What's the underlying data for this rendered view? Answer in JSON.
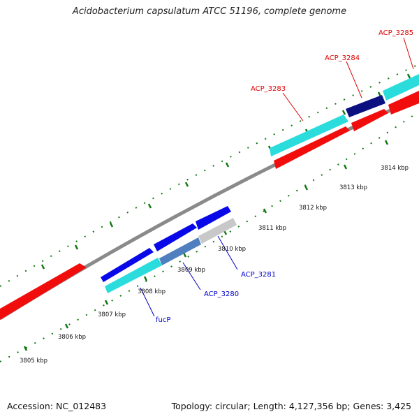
{
  "title": "Acidobacterium capsulatum ATCC 51196, complete genome",
  "footer": {
    "accession": "Accession: NC_012483",
    "summary": "Topology: circular; Length: 4,127,356 bp; Genes: 3,425"
  },
  "ticks": [
    "3805 kbp",
    "3806 kbp",
    "3807 kbp",
    "3808 kbp",
    "3809 kbp",
    "3810 kbp",
    "3811 kbp",
    "3812 kbp",
    "3813 kbp",
    "3814 kbp"
  ],
  "labels": {
    "acp3285": "ACP_3285",
    "acp3284": "ACP_3284",
    "acp3283": "ACP_3283",
    "acp3281": "ACP_3281",
    "acp3280": "ACP_3280",
    "fucp": "fucP"
  },
  "colors": {
    "forward_strand": "#f20d0d",
    "reverse_strand": "#2adcdc",
    "blue_gene": "#0808e8",
    "navy_gene": "#0a1080",
    "grey_gene": "#c8c8c8",
    "steel_gene": "#4f7fbf",
    "red_label": "#dd0000",
    "blue_label": "#0000cc",
    "tick_green": "#117711",
    "backbone": "#808080"
  }
}
